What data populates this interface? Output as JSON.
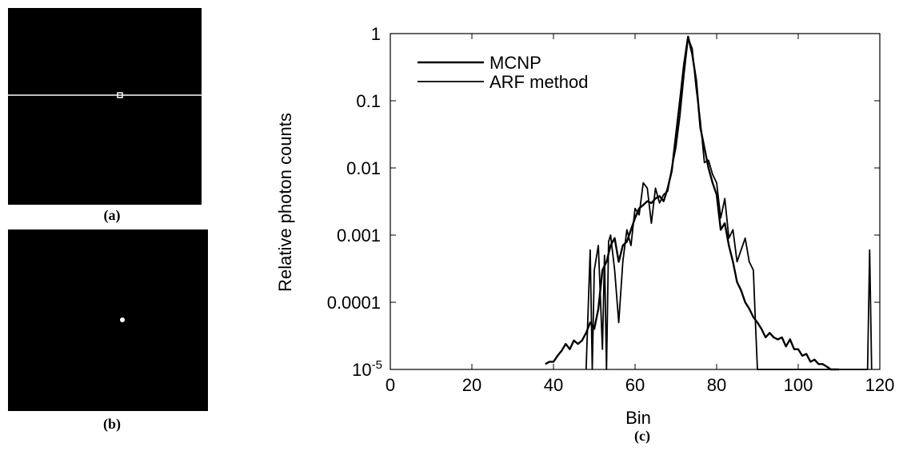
{
  "panels": {
    "a": {
      "label": "(a)"
    },
    "b": {
      "label": "(b)"
    },
    "c": {
      "label": "(c)"
    }
  },
  "colors": {
    "background": "#000000",
    "line": "#000000",
    "image_feature": "#ffffff"
  },
  "chart_data": {
    "type": "line",
    "title": "",
    "xlabel": "Bin",
    "ylabel": "Relative photon counts",
    "xlim": [
      0,
      120
    ],
    "ylim": [
      1e-05,
      1
    ],
    "yscale": "log",
    "xticks": [
      0,
      20,
      40,
      60,
      80,
      100,
      120
    ],
    "xtick_labels": [
      "0",
      "20",
      "40",
      "60",
      "80",
      "100",
      "120"
    ],
    "yticks": [
      1e-05,
      0.0001,
      0.001,
      0.01,
      0.1,
      1
    ],
    "ytick_labels": [
      "0.0001",
      "0.001",
      "0.01",
      "0.1",
      "1"
    ],
    "ytick_bottom_label": {
      "base": "10",
      "exponent": "-5"
    },
    "legend": {
      "placement": "top-left",
      "entries": [
        "MCNP",
        "ARF method"
      ]
    },
    "grid": false,
    "series": [
      {
        "name": "MCNP",
        "x": [
          38,
          39,
          40,
          41,
          42,
          43,
          44,
          45,
          46,
          47,
          48,
          49,
          50,
          51,
          52,
          53,
          54,
          55,
          56,
          57,
          58,
          59,
          60,
          61,
          62,
          63,
          64,
          65,
          66,
          67,
          68,
          69,
          70,
          71,
          72,
          73,
          74,
          75,
          76,
          77,
          78,
          79,
          80,
          81,
          82,
          83,
          84,
          85,
          86,
          87,
          88,
          89,
          90,
          91,
          92,
          93,
          94,
          95,
          96,
          97,
          98,
          99,
          100,
          101,
          102,
          103,
          104,
          105,
          106,
          107,
          108,
          109,
          110
        ],
        "y": [
          1.2e-05,
          1.3e-05,
          1.3e-05,
          1.6e-05,
          1.9e-05,
          2.4e-05,
          2e-05,
          2.7e-05,
          2.4e-05,
          2.7e-05,
          3.5e-05,
          5e-05,
          4e-05,
          8e-05,
          0.0003,
          0.0004,
          0.0007,
          0.0009,
          0.0004,
          0.0007,
          0.0008,
          0.0012,
          0.0018,
          0.0025,
          0.0028,
          0.0032,
          0.003,
          0.0035,
          0.0038,
          0.0032,
          0.005,
          0.009,
          0.03,
          0.1,
          0.35,
          0.9,
          0.5,
          0.2,
          0.04,
          0.02,
          0.01,
          0.006,
          0.004,
          0.0012,
          0.0015,
          0.0007,
          0.0004,
          0.0002,
          0.00015,
          0.0001,
          8e-05,
          6e-05,
          5e-05,
          4e-05,
          3e-05,
          3.5e-05,
          3e-05,
          2.8e-05,
          3e-05,
          2.2e-05,
          2.8e-05,
          2e-05,
          2e-05,
          1.6e-05,
          1.7e-05,
          1.3e-05,
          1.4e-05,
          1.2e-05,
          1.2e-05,
          1.1e-05,
          1e-05,
          1e-05,
          1e-05
        ]
      },
      {
        "name": "ARF method",
        "x": [
          48,
          49,
          49.5,
          50,
          51,
          52,
          52.5,
          53,
          53.5,
          54,
          55,
          56,
          57,
          58,
          59,
          60,
          61,
          62,
          63,
          64,
          65,
          66,
          67,
          68,
          69,
          70,
          71,
          72,
          73,
          74,
          75,
          76,
          77,
          78,
          79,
          80,
          81,
          82,
          83,
          84,
          85,
          86,
          87,
          88,
          89,
          89.5,
          90,
          117,
          117.5,
          118
        ],
        "y": [
          1e-05,
          0.0006,
          1e-05,
          0.0003,
          0.0007,
          2e-05,
          0.0005,
          1e-05,
          0.0008,
          0.001,
          0.0003,
          5e-05,
          0.0004,
          0.0012,
          0.0007,
          0.0025,
          0.002,
          0.006,
          0.005,
          0.0015,
          0.005,
          0.003,
          0.004,
          0.0045,
          0.01,
          0.02,
          0.06,
          0.25,
          0.85,
          0.6,
          0.15,
          0.05,
          0.012,
          0.013,
          0.008,
          0.006,
          0.0018,
          0.0035,
          0.0009,
          0.0012,
          0.0004,
          0.0006,
          0.0009,
          0.0004,
          0.0003,
          5e-05,
          1e-05,
          1e-05,
          0.0006,
          1e-05
        ]
      }
    ]
  }
}
